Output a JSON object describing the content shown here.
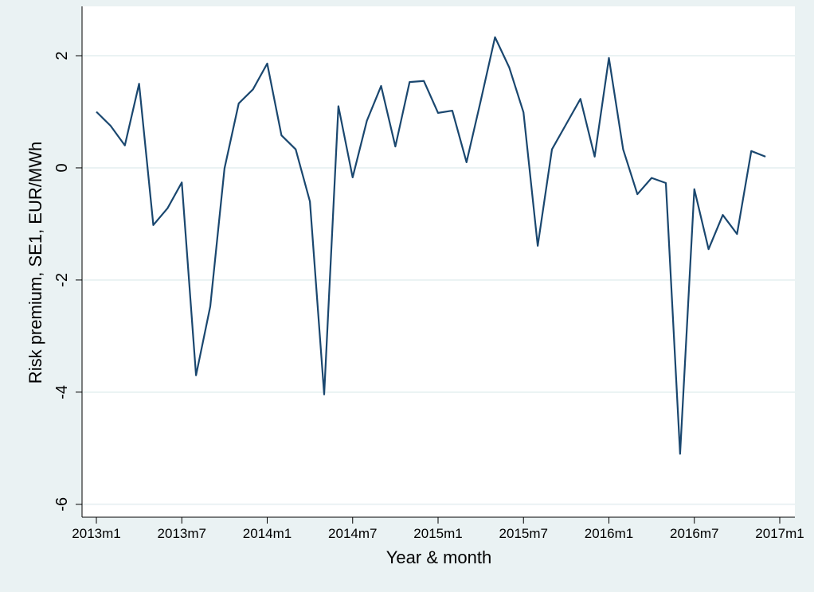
{
  "chart_data": {
    "type": "line",
    "x_label": "Year & month",
    "y_label": "Risk premium, SE1, EUR/MWh",
    "x": [
      "2013m1",
      "2013m2",
      "2013m3",
      "2013m4",
      "2013m5",
      "2013m6",
      "2013m7",
      "2013m8",
      "2013m9",
      "2013m10",
      "2013m11",
      "2013m12",
      "2014m1",
      "2014m2",
      "2014m3",
      "2014m4",
      "2014m5",
      "2014m6",
      "2014m7",
      "2014m8",
      "2014m9",
      "2014m10",
      "2014m11",
      "2014m12",
      "2015m1",
      "2015m2",
      "2015m3",
      "2015m4",
      "2015m5",
      "2015m6",
      "2015m7",
      "2015m8",
      "2015m9",
      "2015m10",
      "2015m11",
      "2015m12",
      "2016m1",
      "2016m2",
      "2016m3",
      "2016m4",
      "2016m5",
      "2016m6",
      "2016m7",
      "2016m8",
      "2016m9",
      "2016m10",
      "2016m11",
      "2016m12"
    ],
    "series": [
      {
        "name": "Risk premium",
        "color": "#1a476f",
        "values": [
          1.0,
          0.75,
          0.4,
          1.5,
          -1.02,
          -0.72,
          -0.26,
          -3.7,
          -2.47,
          -0.01,
          1.15,
          1.4,
          1.86,
          0.58,
          0.33,
          -0.6,
          -4.04,
          1.1,
          -0.17,
          0.84,
          1.46,
          0.38,
          1.53,
          1.55,
          0.98,
          1.02,
          0.1,
          1.2,
          2.33,
          1.79,
          0.99,
          -1.39,
          0.33,
          0.78,
          1.23,
          0.2,
          1.96,
          0.33,
          -0.47,
          -0.18,
          -0.27,
          -5.1,
          -0.38,
          -1.45,
          -0.84,
          -1.18,
          0.3,
          0.2
        ]
      }
    ],
    "xlim": [
      "2013m1",
      "2017m1"
    ],
    "xticks": [
      "2013m1",
      "2013m7",
      "2014m1",
      "2014m7",
      "2015m1",
      "2015m7",
      "2016m1",
      "2016m7",
      "2017m1"
    ],
    "ylim": [
      -6.23,
      2.88
    ],
    "yticks": [
      -6,
      -4,
      -2,
      0,
      2
    ],
    "grid": true
  }
}
